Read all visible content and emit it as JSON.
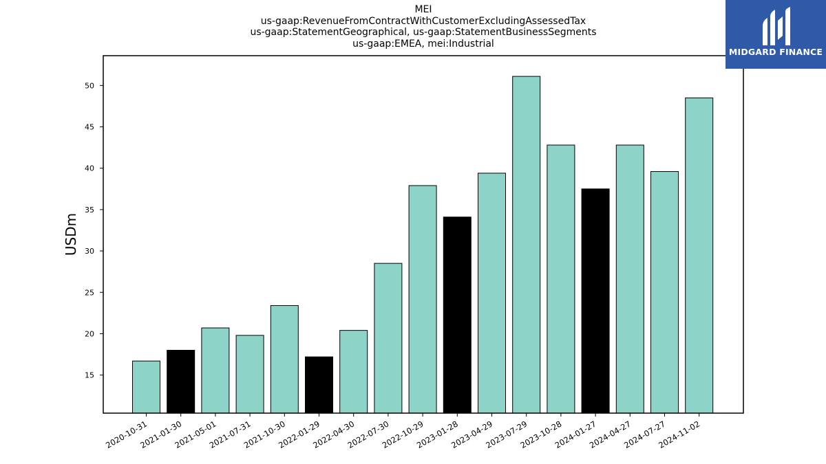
{
  "title_lines": [
    "MEI",
    "us-gaap:RevenueFromContractWithCustomerExcludingAssessedTax",
    "us-gaap:StatementGeographical, us-gaap:StatementBusinessSegments",
    "us-gaap:EMEA, mei:Industrial"
  ],
  "logo": {
    "text": "MIDGARD FINANCE",
    "bg_color": "#2e5aa8"
  },
  "colors": {
    "primary_bar": "#8dd3c7",
    "highlight_bar": "#000000",
    "axis": "#000000"
  },
  "chart_data": {
    "type": "bar",
    "title": "MEI\nus-gaap:RevenueFromContractWithCustomerExcludingAssessedTax\nus-gaap:StatementGeographical, us-gaap:StatementBusinessSegments\nus-gaap:EMEA, mei:Industrial",
    "xlabel": "",
    "ylabel": "USDm",
    "ylim": [
      10.4,
      53.6
    ],
    "yticks": [
      15,
      20,
      25,
      30,
      35,
      40,
      45,
      50
    ],
    "grid": false,
    "categories": [
      "2020-10-31",
      "2021-01-30",
      "2021-05-01",
      "2021-07-31",
      "2021-10-30",
      "2022-01-29",
      "2022-04-30",
      "2022-07-30",
      "2022-10-29",
      "2023-01-28",
      "2023-04-29",
      "2023-07-29",
      "2023-10-28",
      "2024-01-27",
      "2024-04-27",
      "2024-07-27",
      "2024-11-02"
    ],
    "values": [
      16.7,
      18.0,
      20.7,
      19.8,
      23.4,
      17.2,
      20.4,
      28.5,
      37.9,
      34.1,
      39.4,
      51.1,
      42.8,
      37.5,
      42.8,
      39.6,
      48.5
    ],
    "highlight": [
      false,
      true,
      false,
      false,
      false,
      true,
      false,
      false,
      false,
      true,
      false,
      false,
      false,
      true,
      false,
      false,
      false
    ]
  }
}
